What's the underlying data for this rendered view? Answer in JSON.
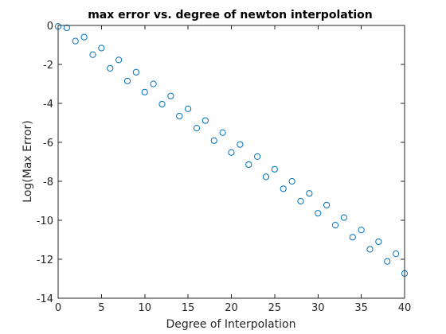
{
  "chart_data": {
    "type": "scatter",
    "title": "max error vs. degree of newton interpolation",
    "xlabel": "Degree of Interpolation",
    "ylabel": "Log(Max Error)",
    "xlim": [
      0,
      40
    ],
    "ylim": [
      -14,
      0
    ],
    "x_ticks": [
      0,
      5,
      10,
      15,
      20,
      25,
      30,
      35,
      40
    ],
    "y_ticks": [
      0,
      -2,
      -4,
      -6,
      -8,
      -10,
      -12,
      -14
    ],
    "x_tick_labels": [
      "0",
      "5",
      "10",
      "15",
      "20",
      "25",
      "30",
      "35",
      "40"
    ],
    "y_tick_labels": [
      "0",
      "-2",
      "-4",
      "-6",
      "-8",
      "-10",
      "-12",
      "-14"
    ],
    "grid": false,
    "legend": "none",
    "marker": "circle-open",
    "marker_color": "#0072bd",
    "series": [
      {
        "x": [
          0,
          1,
          2,
          3,
          4,
          5,
          6,
          7,
          8,
          9,
          10,
          11,
          12,
          13,
          14,
          15,
          16,
          17,
          18,
          19,
          20,
          21,
          22,
          23,
          24,
          25,
          26,
          27,
          28,
          29,
          30,
          31,
          32,
          33,
          34,
          35,
          36,
          37,
          38,
          39,
          40
        ],
        "y": [
          -0.05,
          -0.12,
          -0.8,
          -0.6,
          -1.5,
          -1.16,
          -2.2,
          -1.77,
          -2.85,
          -2.4,
          -3.42,
          -3.0,
          -4.04,
          -3.62,
          -4.65,
          -4.28,
          -5.27,
          -4.88,
          -5.91,
          -5.5,
          -6.52,
          -6.11,
          -7.14,
          -6.73,
          -7.77,
          -7.38,
          -8.38,
          -8.0,
          -9.02,
          -8.62,
          -9.64,
          -9.22,
          -10.25,
          -9.86,
          -10.87,
          -10.5,
          -11.49,
          -11.1,
          -12.11,
          -11.72,
          -12.73
        ]
      }
    ]
  }
}
